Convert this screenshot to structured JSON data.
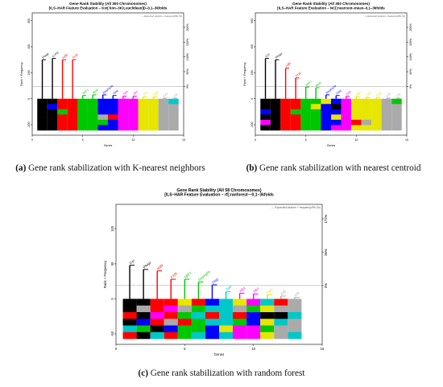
{
  "chart_data": [
    {
      "type": "heatmap",
      "title": "Gene Rank Stability  (All 300 Chromosomes)",
      "subtitle": "[ILS–HAR Feature Evaluation – Km[ knn–3K!Leuclidean]D–0,1–3kfolds",
      "xlabel": "Genes",
      "ylabel": "Rank + Frequency",
      "legend_text": "— Expected random + frequency/Rk (%)",
      "x_ticks": [
        "0",
        "5",
        "10",
        "15"
      ],
      "y_ticks": [
        "600",
        "400",
        "200",
        "0",
        "-200"
      ],
      "right_ticks": [
        "200%",
        "150%",
        "100%",
        "50%",
        "0%"
      ],
      "ylim": [
        -280,
        660
      ],
      "xlim": [
        0,
        15
      ],
      "threshold": 95,
      "genes": [
        {
          "name": "Pfwgz",
          "color": "#000000",
          "pos": 1,
          "height": 300
        },
        {
          "name": "CYFb",
          "color": "#000000",
          "pos": 2,
          "height": 310
        },
        {
          "name": "Hdl9",
          "color": "#ff0000",
          "pos": 3,
          "height": 300
        },
        {
          "name": "Fzzb",
          "color": "#ff0000",
          "pos": 4,
          "height": 300
        },
        {
          "name": "DbF1",
          "color": "#00c800",
          "pos": 5,
          "height": 25
        },
        {
          "name": "Mptb",
          "color": "#00c800",
          "pos": 6,
          "height": 30
        },
        {
          "name": "Dsgmg3a",
          "color": "#0000ff",
          "pos": 7,
          "height": 30
        },
        {
          "name": "Ctsg",
          "color": "#0000ff",
          "pos": 8,
          "height": 25
        },
        {
          "name": "Zlpb",
          "color": "#ff00ff",
          "pos": 9,
          "height": 20
        },
        {
          "name": "Alb1",
          "color": "#ff00ff",
          "pos": 10,
          "height": 20
        },
        {
          "name": "Zfb1",
          "color": "#e6e600",
          "pos": 11,
          "height": 15
        },
        {
          "name": "Fgbr",
          "color": "#e6e600",
          "pos": 12,
          "height": 15
        },
        {
          "name": "Kif3",
          "color": "#aaaaaa",
          "pos": 13,
          "height": 5
        },
        {
          "name": "Ctb",
          "color": "#aaaaaa",
          "pos": 14,
          "height": 5
        }
      ]
    },
    {
      "type": "heatmap",
      "title": "Gene Rank Stability  (All 300 Chromosomes)",
      "subtitle": "[ILS–HAR Feature Evaluation – NC[;nearcent–mean–0,1–3kfolds",
      "xlabel": "Genes",
      "ylabel": "Rank + Frequency",
      "legend_text": "— Expected random + frequency/Rk (%)",
      "x_ticks": [
        "0",
        "5",
        "10",
        "15"
      ],
      "y_ticks": [
        "600",
        "400",
        "200",
        "0",
        "-200"
      ],
      "right_ticks": [
        "200%",
        "150%",
        "100%",
        "50%",
        "0%"
      ],
      "ylim": [
        -280,
        660
      ],
      "xlim": [
        0,
        15
      ],
      "threshold": 95,
      "genes": [
        {
          "name": "Cyc",
          "color": "#000000",
          "pos": 1,
          "height": 310
        },
        {
          "name": "Pfwgz",
          "color": "#000000",
          "pos": 2,
          "height": 300
        },
        {
          "name": "Hdl9",
          "color": "#ff0000",
          "pos": 3,
          "height": 235
        },
        {
          "name": "Fzzb",
          "color": "#ff0000",
          "pos": 4,
          "height": 160
        },
        {
          "name": "DbF1",
          "color": "#00c800",
          "pos": 5,
          "height": 90
        },
        {
          "name": "Mptb",
          "color": "#00c800",
          "pos": 6,
          "height": 85
        },
        {
          "name": "Dsgmg3a",
          "color": "#0000ff",
          "pos": 7,
          "height": 30
        },
        {
          "name": "Ctsg",
          "color": "#0000ff",
          "pos": 8,
          "height": 25
        },
        {
          "name": "Zlpb",
          "color": "#ff00ff",
          "pos": 9,
          "height": 20
        },
        {
          "name": "Alb1",
          "color": "#e6e600",
          "pos": 10,
          "height": 15
        },
        {
          "name": "Zfb1",
          "color": "#e6e600",
          "pos": 11,
          "height": 10
        },
        {
          "name": "Fgbr",
          "color": "#e6e600",
          "pos": 12,
          "height": 10
        },
        {
          "name": "Kif3",
          "color": "#aaaaaa",
          "pos": 13,
          "height": 5
        },
        {
          "name": "Ctb",
          "color": "#aaaaaa",
          "pos": 14,
          "height": 5
        }
      ]
    },
    {
      "type": "heatmap",
      "title": "Gene Rank Stability  (All 58 Chromosomes)",
      "subtitle": "[ILS–HAR Feature Evaluation – rf[;ranforest—0,1–3kfolds",
      "xlabel": "Genes",
      "ylabel": "Rank + Frequency",
      "legend_text": "— Expected random + frequency/Rk (%)",
      "x_ticks": [
        "0",
        "5",
        "10",
        "15"
      ],
      "y_ticks": [
        "100",
        "50",
        "0",
        "-50"
      ],
      "right_ticks": [
        "172%",
        "86%",
        "0%"
      ],
      "ylim": [
        -65,
        135
      ],
      "xlim": [
        0,
        15
      ],
      "threshold": 19,
      "genes": [
        {
          "name": "Cyc",
          "color": "#000000",
          "pos": 1,
          "height": 48
        },
        {
          "name": "Pfwgz",
          "color": "#000000",
          "pos": 2,
          "height": 42
        },
        {
          "name": "Hdl9",
          "color": "#ff0000",
          "pos": 3,
          "height": 40
        },
        {
          "name": "Fzzb",
          "color": "#ff0000",
          "pos": 4,
          "height": 28
        },
        {
          "name": "DbF1",
          "color": "#00c800",
          "pos": 5,
          "height": 28
        },
        {
          "name": "Dsgmg3a",
          "color": "#00c800",
          "pos": 6,
          "height": 24
        },
        {
          "name": "Ctsg",
          "color": "#0000ff",
          "pos": 7,
          "height": 20
        },
        {
          "name": "Zlpb",
          "color": "#00c8c8",
          "pos": 8,
          "height": 10
        },
        {
          "name": "Alb1",
          "color": "#ff00ff",
          "pos": 9,
          "height": 8
        },
        {
          "name": "Zfb1",
          "color": "#ff00ff",
          "pos": 10,
          "height": 7
        },
        {
          "name": "Fgbr",
          "color": "#e6e600",
          "pos": 11,
          "height": 6
        },
        {
          "name": "Kif3",
          "color": "#aaaaaa",
          "pos": 12,
          "height": 4
        },
        {
          "name": "Ctb",
          "color": "#aaaaaa",
          "pos": 13,
          "height": 2
        }
      ]
    }
  ],
  "captions": [
    {
      "label": "(a)",
      "text": " Gene rank stabilization with K-nearest neighbors"
    },
    {
      "label": "(b)",
      "text": " Gene rank stabilization with nearest centroid"
    },
    {
      "label": "(c)",
      "text": " Gene rank stabilization with random forest"
    }
  ]
}
